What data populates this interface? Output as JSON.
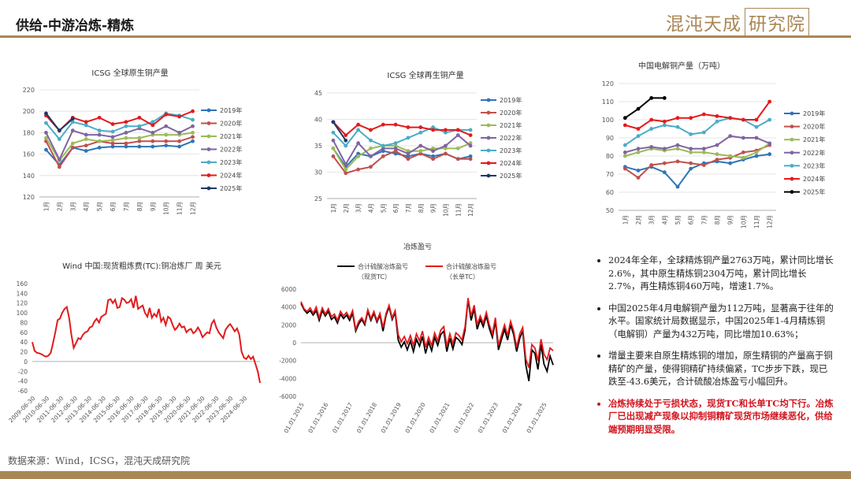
{
  "header": {
    "title": "供给-中游冶炼-精炼",
    "logo_text": "混沌天成",
    "logo_box": "研究院",
    "accent": "#a98755"
  },
  "footer": {
    "source": "数据来源：Wind，ICSG，混沌天成研究院"
  },
  "notes": [
    {
      "text": "2024年全年，全球精炼铜产量2763万吨，累计同比增长2.6%，其中原生精炼铜2304万吨，累计同比增长2.7%，再生精炼铜460万吨，增速1.7%。",
      "highlight": false
    },
    {
      "text": "中国2025年4月电解铜产量为112万吨，显著高于往年的水平。国家统计局数据显示，中国2025年1-4月精炼铜（电解铜）产量为432万吨，同比增加10.63%；",
      "highlight": false
    },
    {
      "text": "增量主要来自原生精炼铜的增加，原生精铜的产量高于铜精矿的产量，使得铜精矿持续偏紧，TC步步下跌，现已跌至-43.6美元，合计硫酸冶炼盈亏小幅回升。",
      "highlight": false
    },
    {
      "text": "冶炼持续处于亏损状态，现货TC和长单TC均下行。冶炼厂已出现减产现象以抑制铜精矿现货市场继续恶化，供给端预期明显受限。",
      "highlight": true
    }
  ],
  "chart_data": [
    {
      "type": "line",
      "title": "ICSG 全球原生铜产量",
      "categories": [
        "1月",
        "2月",
        "3月",
        "4月",
        "5月",
        "6月",
        "7月",
        "8月",
        "9月",
        "10月",
        "11月",
        "12月"
      ],
      "ylim": [
        120,
        220
      ],
      "yticks": [
        120,
        140,
        160,
        180,
        200,
        220
      ],
      "grid": true,
      "legend": "right",
      "series": [
        {
          "name": "2019年",
          "color": "#2e75b6",
          "values": [
            164,
            150,
            166,
            163,
            166,
            167,
            167,
            167,
            167,
            168,
            167,
            172
          ]
        },
        {
          "name": "2020年",
          "color": "#c0504d",
          "values": [
            172,
            148,
            166,
            168,
            172,
            170,
            170,
            172,
            172,
            172,
            172,
            176
          ]
        },
        {
          "name": "2021年",
          "color": "#9bbb59",
          "values": [
            175,
            154,
            170,
            174,
            172,
            173,
            175,
            175,
            178,
            178,
            178,
            180
          ]
        },
        {
          "name": "2022年",
          "color": "#8064a2",
          "values": [
            180,
            155,
            182,
            178,
            178,
            176,
            180,
            184,
            180,
            186,
            180,
            186
          ]
        },
        {
          "name": "2023年",
          "color": "#4bacc6",
          "values": [
            189,
            174,
            190,
            187,
            182,
            181,
            186,
            186,
            190,
            198,
            196,
            192
          ]
        },
        {
          "name": "2024年",
          "color": "#e31a1c",
          "values": [
            196,
            182,
            194,
            190,
            194,
            188,
            190,
            194,
            187,
            197,
            195,
            200
          ]
        },
        {
          "name": "2025年",
          "color": "#1f3864",
          "values": [
            198,
            182,
            193,
            null,
            null,
            null,
            null,
            null,
            null,
            null,
            null,
            null
          ]
        }
      ]
    },
    {
      "type": "line",
      "title": "ICSG 全球再生铜产量",
      "categories": [
        "1月",
        "2月",
        "3月",
        "4月",
        "5月",
        "6月",
        "7月",
        "8月",
        "9月",
        "10月",
        "11月",
        "12月"
      ],
      "ylim": [
        25,
        45
      ],
      "yticks": [
        25,
        30,
        35,
        40,
        45
      ],
      "grid": true,
      "legend": "right",
      "series": [
        {
          "name": "2019年",
          "color": "#2e75b6",
          "values": [
            34.5,
            31.0,
            33.5,
            33.0,
            34.0,
            33.5,
            33.0,
            33.5,
            33.0,
            33.5,
            32.5,
            33.0
          ]
        },
        {
          "name": "2020年",
          "color": "#c0504d",
          "values": [
            33.0,
            29.8,
            30.5,
            31.0,
            33.0,
            34.0,
            32.5,
            33.5,
            32.5,
            33.5,
            32.5,
            32.5
          ]
        },
        {
          "name": "2021年",
          "color": "#9bbb59",
          "values": [
            34.5,
            30.5,
            33.0,
            34.5,
            35.0,
            35.0,
            34.0,
            34.0,
            34.5,
            34.5,
            34.5,
            35.5
          ]
        },
        {
          "name": "2022年",
          "color": "#8064a2",
          "values": [
            36.0,
            31.5,
            35.5,
            33.0,
            34.5,
            34.5,
            33.5,
            35.0,
            34.0,
            35.0,
            37.0,
            35.0
          ]
        },
        {
          "name": "2023年",
          "color": "#4bacc6",
          "values": [
            37.5,
            35.0,
            38.0,
            36.0,
            35.0,
            35.5,
            36.5,
            37.5,
            38.5,
            37.5,
            38.0,
            38.0
          ]
        },
        {
          "name": "2024年",
          "color": "#e31a1c",
          "values": [
            39.5,
            37.0,
            39.0,
            38.0,
            39.0,
            39.0,
            38.5,
            38.5,
            38.0,
            38.0,
            38.0,
            37.0
          ]
        },
        {
          "name": "2025年",
          "color": "#1f3864",
          "values": [
            39.5,
            36.0,
            null,
            null,
            null,
            null,
            null,
            null,
            null,
            null,
            null,
            null
          ]
        }
      ]
    },
    {
      "type": "line",
      "title": "中国电解铜产量（万吨）",
      "categories": [
        "1月",
        "2月",
        "3月",
        "4月",
        "5月",
        "6月",
        "7月",
        "8月",
        "9月",
        "10月",
        "11月",
        "12月"
      ],
      "ylim": [
        50,
        120
      ],
      "yticks": [
        50,
        60,
        70,
        80,
        90,
        100,
        110,
        120
      ],
      "grid": true,
      "legend": "right",
      "series": [
        {
          "name": "2019年",
          "color": "#2e75b6",
          "values": [
            74,
            72,
            74,
            71,
            63,
            73,
            76,
            77,
            76,
            78,
            80,
            81
          ]
        },
        {
          "name": "2020年",
          "color": "#c0504d",
          "values": [
            73,
            68,
            75,
            76,
            77,
            76,
            75,
            78,
            79,
            82,
            83,
            86
          ]
        },
        {
          "name": "2021年",
          "color": "#9bbb59",
          "values": [
            80,
            82,
            84,
            83,
            84,
            82,
            82,
            81,
            80,
            79,
            82,
            87
          ]
        },
        {
          "name": "2022年",
          "color": "#8064a2",
          "values": [
            82,
            84,
            85,
            84,
            86,
            84,
            84,
            86,
            91,
            90,
            90,
            87
          ]
        },
        {
          "name": "2023年",
          "color": "#4bacc6",
          "values": [
            86,
            91,
            95,
            97,
            96,
            92,
            93,
            99,
            101,
            100,
            96,
            100
          ]
        },
        {
          "name": "2024年",
          "color": "#e31a1c",
          "values": [
            97,
            95,
            100,
            99,
            101,
            101,
            103,
            102,
            101,
            100,
            100,
            110
          ]
        },
        {
          "name": "2025年",
          "color": "#000000",
          "values": [
            101,
            106,
            112,
            112,
            null,
            null,
            null,
            null,
            null,
            null,
            null,
            null
          ]
        }
      ]
    },
    {
      "type": "line",
      "title": "Wind 中国:现货粗炼费(TC):铜冶炼厂 周 美元",
      "ylim": [
        -60,
        160
      ],
      "yticks": [
        -60,
        -40,
        -20,
        0,
        20,
        40,
        60,
        80,
        100,
        120,
        140,
        160
      ],
      "xticks": [
        "2009-06-30",
        "2010-06-30",
        "2011-06-30",
        "2012-06-30",
        "2013-06-30",
        "2014-06-30",
        "2015-06-30",
        "2016-06-30",
        "2017-06-30",
        "2018-06-30",
        "2019-06-30",
        "2020-06-30",
        "2021-06-30",
        "2022-06-30",
        "2023-06-30",
        "2024-06-30"
      ],
      "series": [
        {
          "name": "",
          "color": "#e31a1c",
          "values": [
            40,
            22,
            18,
            17,
            15,
            12,
            10,
            12,
            18,
            38,
            60,
            85,
            88,
            100,
            108,
            112,
            90,
            55,
            28,
            38,
            48,
            46,
            55,
            60,
            62,
            70,
            72,
            82,
            88,
            80,
            92,
            95,
            98,
            126,
            128,
            120,
            127,
            110,
            112,
            130,
            127,
            120,
            122,
            128,
            110,
            135,
            108,
            112,
            115,
            100,
            92,
            110,
            90,
            98,
            92,
            108,
            82,
            90,
            75,
            92,
            88,
            75,
            65,
            70,
            78,
            70,
            72,
            60,
            65,
            67,
            58,
            62,
            70,
            62,
            50,
            55,
            60,
            58,
            78,
            85,
            70,
            60,
            54,
            48,
            65,
            72,
            77,
            70,
            62,
            68,
            55,
            20,
            8,
            5,
            12,
            5,
            10,
            -5,
            -20,
            -44
          ]
        }
      ]
    },
    {
      "type": "line",
      "title": "冶炼盈亏",
      "ylim": [
        -6000,
        6000
      ],
      "yticks": [
        -6000,
        -4000,
        -2000,
        0,
        2000,
        4000,
        6000
      ],
      "xticks": [
        "01.01.2015",
        "01.01.2016",
        "01.01.2017",
        "01.01.2018",
        "01.01.2019",
        "01.01.2020",
        "01.01.2021",
        "01.01.2022",
        "01.01.2023",
        "01.01.2024",
        "01.01.2025"
      ],
      "legend": "top",
      "series": [
        {
          "name": "合计硫酸冶炼盈亏（现货TC）",
          "color": "#000000",
          "values": [
            4400,
            3700,
            3300,
            3600,
            3100,
            3600,
            2500,
            3600,
            3000,
            3500,
            2600,
            2900,
            2200,
            3200,
            2700,
            3100,
            2500,
            3300,
            1300,
            2100,
            2600,
            2000,
            3500,
            2500,
            3300,
            2300,
            3100,
            1300,
            3100,
            4000,
            2600,
            3400,
            300,
            -500,
            100,
            -800,
            200,
            -1000,
            400,
            -400,
            700,
            -1200,
            100,
            -900,
            600,
            -300,
            900,
            1300,
            -1000,
            500,
            -700,
            600,
            300,
            -200,
            1400,
            4800,
            2500,
            3800,
            1500,
            2600,
            1800,
            3000,
            1600,
            600,
            2400,
            -800,
            400,
            1500,
            300,
            2000,
            900,
            -1000,
            500,
            1300,
            -2500,
            -4300,
            -800,
            -1200,
            -3000,
            -200,
            -2400,
            -3200,
            -1500,
            -2500
          ]
        },
        {
          "name": "合计硫酸冶炼盈亏（长单TC）",
          "color": "#e31a1c",
          "values": [
            4600,
            3800,
            3500,
            3900,
            3300,
            4000,
            2800,
            3900,
            3200,
            3800,
            2900,
            3200,
            2500,
            3500,
            3000,
            3400,
            2800,
            3600,
            1500,
            2400,
            2800,
            2200,
            3700,
            2700,
            3500,
            2500,
            3300,
            1700,
            3300,
            4200,
            2800,
            3600,
            900,
            100,
            700,
            -100,
            800,
            -300,
            1000,
            200,
            1300,
            -500,
            600,
            -300,
            1100,
            200,
            1400,
            1800,
            -400,
            1000,
            -100,
            1100,
            800,
            300,
            1800,
            5000,
            3000,
            4200,
            2000,
            3000,
            2200,
            3400,
            2000,
            1000,
            2800,
            -300,
            900,
            2000,
            800,
            2400,
            1300,
            -500,
            1000,
            1700,
            -1800,
            -2800,
            -200,
            -600,
            -2000,
            400,
            -1300,
            -1900,
            -600,
            -900
          ]
        }
      ]
    }
  ]
}
